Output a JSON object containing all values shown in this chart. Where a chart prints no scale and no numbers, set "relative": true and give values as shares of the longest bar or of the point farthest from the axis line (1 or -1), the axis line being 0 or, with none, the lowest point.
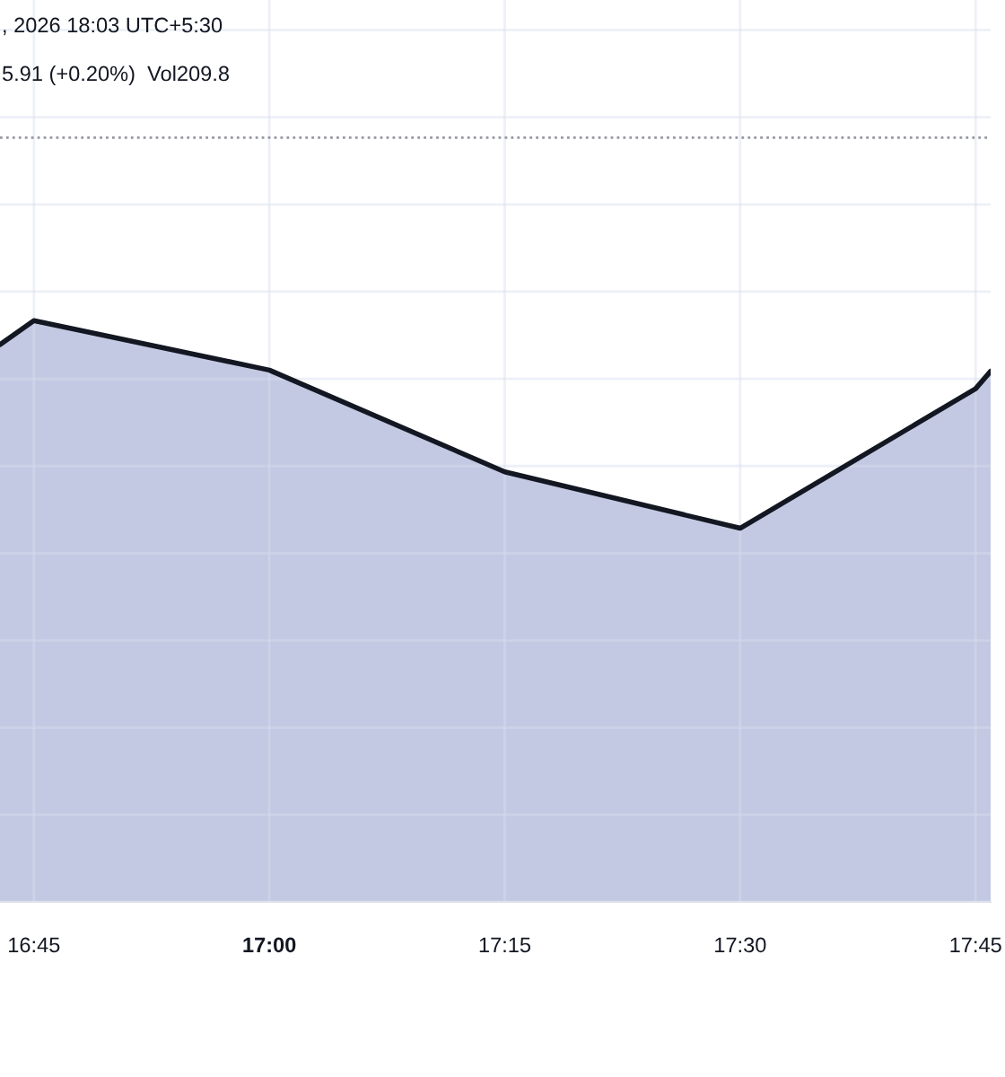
{
  "chart_data": {
    "type": "area",
    "relative": true,
    "x": [
      16.714,
      16.75,
      17.0,
      17.25,
      17.5,
      17.75,
      17.766
    ],
    "series": [
      {
        "color": "#c3c9e2",
        "values": [
          0.959,
          1,
          0.915,
          0.74,
          0.643,
          0.883,
          0.913
        ]
      }
    ],
    "xlim": [
      16.714,
      17.766
    ],
    "xticks": [
      {
        "value": 16.75,
        "label": "16:45"
      },
      {
        "value": 17.0,
        "label": "17:00"
      },
      {
        "value": 17.25,
        "label": "17:15"
      },
      {
        "value": 17.5,
        "label": "17:30"
      },
      {
        "value": 17.75,
        "label": "17:45"
      }
    ],
    "ref_lines": [
      {
        "axis": "y",
        "value": 1.315,
        "color": "#9598a1",
        "line_style": "dotted"
      }
    ],
    "grid": true,
    "tick_labels": "x",
    "marker": "none",
    "line_style": "solid",
    "annotations": [
      ", 2026 18:03 UTC+5:30",
      "5.91 (+0.20%)  Vol209.8"
    ]
  }
}
